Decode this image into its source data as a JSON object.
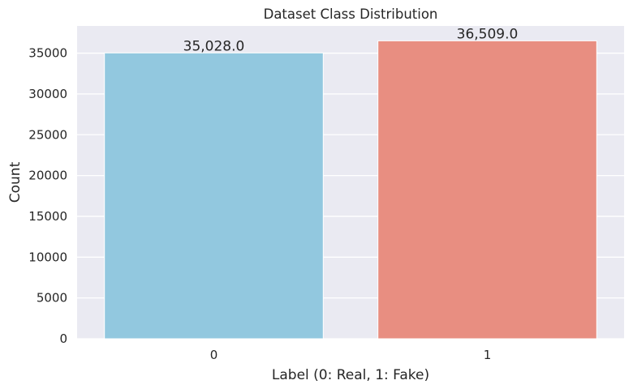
{
  "chart_data": {
    "type": "bar",
    "title": "Dataset Class Distribution",
    "xlabel": "Label (0: Real, 1: Fake)",
    "ylabel": "Count",
    "categories": [
      "0",
      "1"
    ],
    "values": [
      35028,
      36509
    ],
    "value_labels": [
      "35,028.0",
      "36,509.0"
    ],
    "colors": [
      "#92c8df",
      "#e88e81"
    ],
    "ylim": [
      0,
      38334
    ],
    "yticks": [
      0,
      5000,
      10000,
      15000,
      20000,
      25000,
      30000,
      35000
    ],
    "ytick_labels": [
      "0",
      "5000",
      "10000",
      "15000",
      "20000",
      "25000",
      "30000",
      "35000"
    ],
    "grid": true,
    "background": "#eaeaf2",
    "legend": "none"
  }
}
